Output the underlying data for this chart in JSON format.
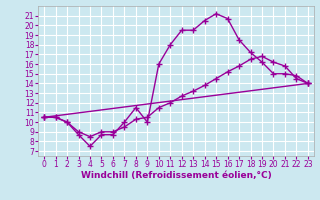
{
  "xlabel": "Windchill (Refroidissement éolien,°C)",
  "ylabel": "",
  "bg_color": "#cce8f0",
  "line_color": "#990099",
  "grid_color": "#ffffff",
  "xlim": [
    -0.5,
    23.5
  ],
  "ylim": [
    6.5,
    22
  ],
  "xticks": [
    0,
    1,
    2,
    3,
    4,
    5,
    6,
    7,
    8,
    9,
    10,
    11,
    12,
    13,
    14,
    15,
    16,
    17,
    18,
    19,
    20,
    21,
    22,
    23
  ],
  "yticks": [
    7,
    8,
    9,
    10,
    11,
    12,
    13,
    14,
    15,
    16,
    17,
    18,
    19,
    20,
    21
  ],
  "line1_x": [
    0,
    1,
    2,
    3,
    4,
    5,
    6,
    7,
    8,
    9,
    10,
    11,
    12,
    13,
    14,
    15,
    16,
    17,
    18,
    19,
    20,
    21,
    22,
    23
  ],
  "line1_y": [
    10.5,
    10.5,
    10.0,
    8.7,
    7.5,
    8.7,
    8.7,
    10.0,
    11.5,
    10.0,
    16.0,
    18.0,
    19.5,
    19.5,
    20.5,
    21.2,
    20.7,
    18.5,
    17.2,
    16.2,
    15.0,
    15.0,
    14.8,
    14.0
  ],
  "line2_x": [
    0,
    1,
    2,
    3,
    4,
    5,
    6,
    7,
    8,
    9,
    10,
    11,
    12,
    13,
    14,
    15,
    16,
    17,
    18,
    19,
    20,
    21,
    22,
    23
  ],
  "line2_y": [
    10.5,
    10.5,
    10.0,
    9.0,
    8.5,
    9.0,
    9.0,
    9.5,
    10.3,
    10.5,
    11.5,
    12.0,
    12.7,
    13.2,
    13.8,
    14.5,
    15.2,
    15.8,
    16.5,
    16.8,
    16.2,
    15.8,
    14.5,
    14.0
  ],
  "line3_x": [
    0,
    23
  ],
  "line3_y": [
    10.5,
    14.0
  ],
  "marker": "+",
  "markersize": 4,
  "linewidth": 1.0,
  "tick_fontsize": 5.5,
  "label_fontsize": 6.5
}
